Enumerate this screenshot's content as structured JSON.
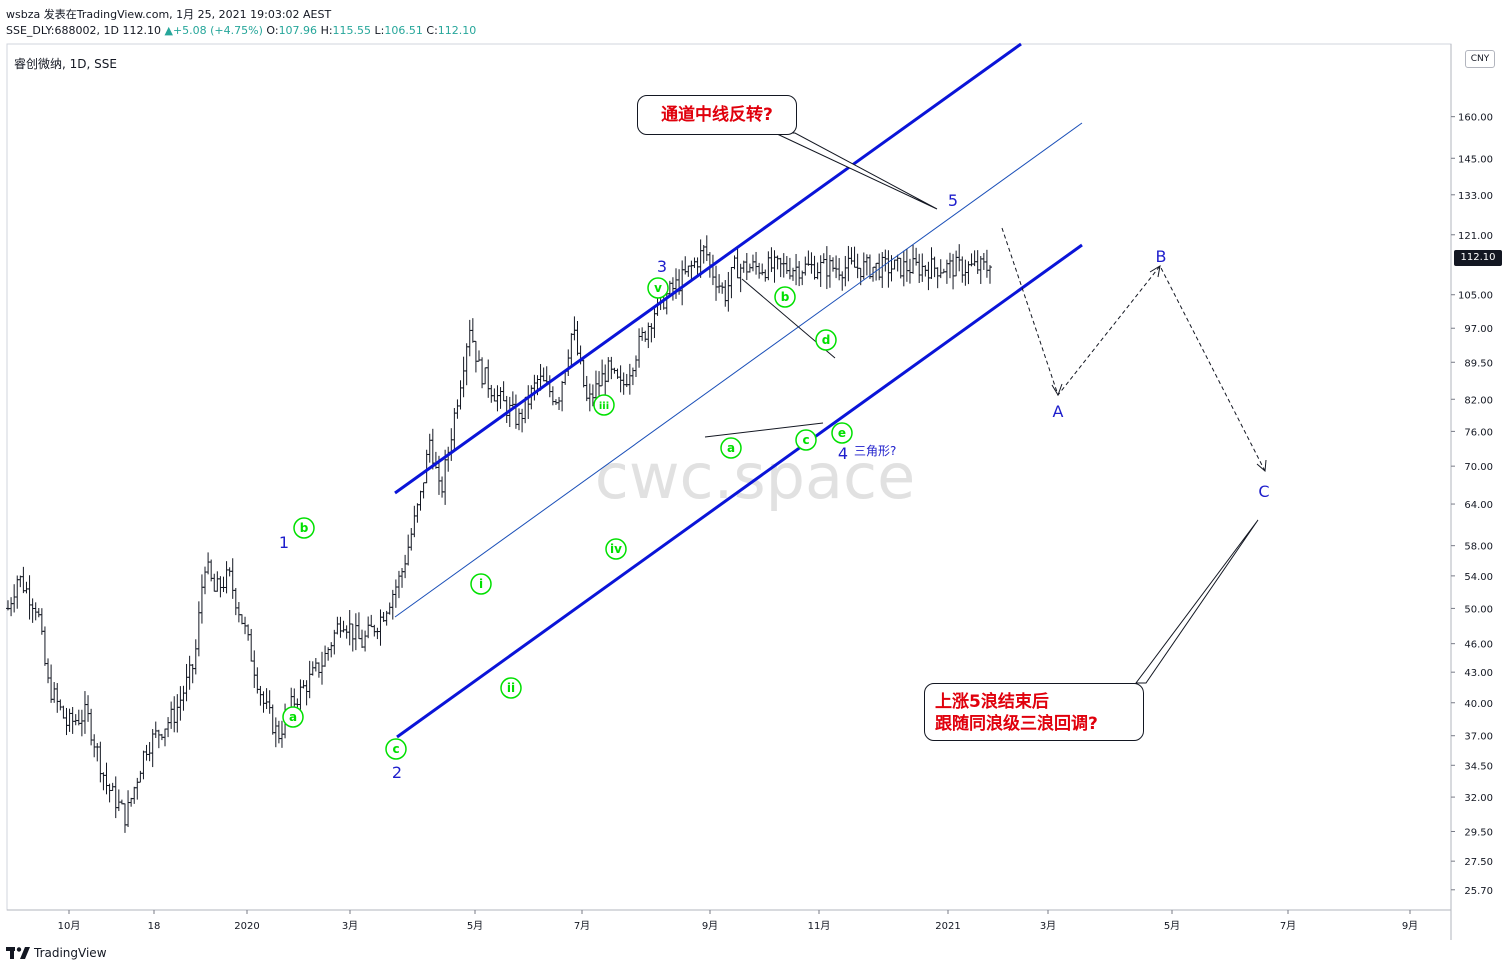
{
  "header": {
    "line1": "wsbza 发表在TradingView.com, 1月 25, 2021 19:03:02 AEST",
    "symbol_info": "SSE_DLY:688002, 1D 112.10",
    "change": "+5.08 (+4.75%)",
    "o_label": "O:",
    "o": "107.96",
    "h_label": "H:",
    "h": "115.55",
    "l_label": "L:",
    "l": "106.51",
    "c_label": "C:",
    "c": "112.10",
    "instrument": "睿创微纳, 1D, SSE"
  },
  "currency": "CNY",
  "last_price": "112.10",
  "watermark": "cwc.space",
  "footer": {
    "brand": "TradingView"
  },
  "colors": {
    "channel": "#0a14d8",
    "wave_green": "#00e000",
    "wave_blue": "#1e1ecc",
    "callout_red": "#e0000c",
    "price_up": "#26a69a"
  },
  "callouts": {
    "top": "通道中线反转?",
    "bottom_line1": "上涨5浪结束后",
    "bottom_line2": "跟随同浪级三浪回调?"
  },
  "annotations": {
    "triangle": "三角形?",
    "blue_waves": [
      "1",
      "2",
      "3",
      "4",
      "5",
      "A",
      "B",
      "C"
    ],
    "green_waves": [
      "a",
      "b",
      "c",
      "i",
      "ii",
      "iii",
      "iv",
      "v",
      "a",
      "b",
      "c",
      "d",
      "e"
    ]
  },
  "chart_data": {
    "type": "candlestick",
    "title": "睿创微纳, 1D, SSE",
    "scale": "log",
    "y_ticks": [
      "160.00",
      "145.00",
      "133.00",
      "121.00",
      "112.10",
      "105.00",
      "97.00",
      "89.50",
      "82.00",
      "76.00",
      "70.00",
      "64.00",
      "58.00",
      "54.00",
      "50.00",
      "46.00",
      "43.00",
      "40.00",
      "37.00",
      "34.50",
      "32.00",
      "29.50",
      "27.50",
      "25.70"
    ],
    "x_ticks": [
      "10月",
      "18",
      "2020",
      "3月",
      "5月",
      "7月",
      "9月",
      "11月",
      "2021",
      "3月",
      "5月",
      "7月",
      "9月"
    ],
    "ylim": [
      24.5,
      190
    ],
    "price_path": [
      [
        0,
        50
      ],
      [
        0.01,
        54
      ],
      [
        0.03,
        50
      ],
      [
        0.04,
        42
      ],
      [
        0.06,
        38
      ],
      [
        0.08,
        39
      ],
      [
        0.1,
        33
      ],
      [
        0.12,
        30.5
      ],
      [
        0.14,
        36
      ],
      [
        0.17,
        39
      ],
      [
        0.19,
        44
      ],
      [
        0.2,
        56
      ],
      [
        0.21,
        52
      ],
      [
        0.225,
        54
      ],
      [
        0.24,
        48
      ],
      [
        0.26,
        40
      ],
      [
        0.275,
        37
      ],
      [
        0.29,
        40
      ],
      [
        0.32,
        44
      ],
      [
        0.34,
        49
      ],
      [
        0.36,
        46
      ],
      [
        0.38,
        49
      ],
      [
        0.4,
        54
      ],
      [
        0.42,
        65
      ],
      [
        0.43,
        75
      ],
      [
        0.44,
        65
      ],
      [
        0.46,
        85
      ],
      [
        0.47,
        98
      ],
      [
        0.48,
        88
      ],
      [
        0.5,
        82
      ],
      [
        0.52,
        78
      ],
      [
        0.54,
        86
      ],
      [
        0.56,
        82
      ],
      [
        0.575,
        97
      ],
      [
        0.59,
        81
      ],
      [
        0.61,
        88
      ],
      [
        0.625,
        84
      ],
      [
        0.64,
        92
      ],
      [
        0.66,
        102
      ],
      [
        0.69,
        110
      ],
      [
        0.71,
        117
      ],
      [
        0.715,
        112
      ],
      [
        0.73,
        105
      ],
      [
        0.74,
        112
      ]
    ],
    "last_close": 112.1,
    "projection": {
      "points": [
        "5",
        "A",
        "B",
        "C"
      ],
      "A": 82,
      "B": 110,
      "C": 68
    }
  }
}
